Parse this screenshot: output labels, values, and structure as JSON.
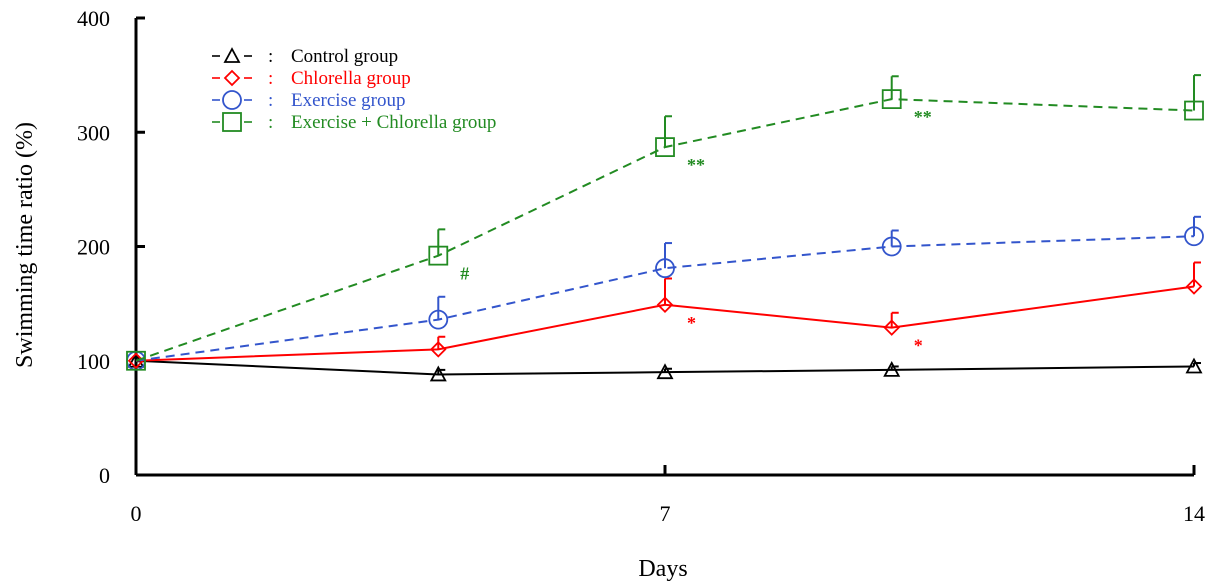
{
  "chart_data": {
    "type": "line",
    "title": "",
    "xlabel": "Days",
    "ylabel": "Swimming time ratio (%)",
    "xlim": [
      0,
      14
    ],
    "ylim": [
      0,
      400
    ],
    "x_ticks": [
      "0",
      "7",
      "14"
    ],
    "y_ticks": [
      "0",
      "100",
      "200",
      "300",
      "400"
    ],
    "grid": false,
    "legend_position": "top-left",
    "legend_separator": ":",
    "series": [
      {
        "name": "Control group",
        "marker": "triangle",
        "color": "#000000",
        "line_style": "solid",
        "x": [
          0,
          4,
          7,
          10,
          14
        ],
        "y": [
          100,
          88,
          90,
          92,
          95
        ],
        "error": [
          0,
          4,
          3,
          3,
          3
        ],
        "annotations": [
          "",
          "",
          "",
          "",
          ""
        ]
      },
      {
        "name": "Chlorella group",
        "marker": "diamond",
        "color": "#ff0000",
        "line_style": "solid",
        "x": [
          0,
          4,
          7,
          10,
          14
        ],
        "y": [
          100,
          110,
          149,
          129,
          165
        ],
        "error": [
          0,
          11,
          23,
          13,
          21
        ],
        "annotations": [
          "",
          "",
          "*",
          "*",
          "**"
        ]
      },
      {
        "name": "Exercise group",
        "marker": "circle",
        "color": "#3355cc",
        "line_style": "dashed",
        "x": [
          0,
          4,
          7,
          10,
          14
        ],
        "y": [
          100,
          136,
          181,
          200,
          209
        ],
        "error": [
          0,
          20,
          22,
          14,
          17
        ],
        "annotations": [
          "",
          "",
          "",
          "",
          ""
        ]
      },
      {
        "name": "Exercise + Chlorella group",
        "marker": "square",
        "color": "#228b22",
        "line_style": "dashed",
        "x": [
          0,
          4,
          7,
          10,
          14
        ],
        "y": [
          100,
          192,
          287,
          329,
          319
        ],
        "error": [
          0,
          23,
          27,
          20,
          31
        ],
        "annotations": [
          "",
          "#",
          "**",
          "**",
          "**"
        ]
      }
    ]
  }
}
